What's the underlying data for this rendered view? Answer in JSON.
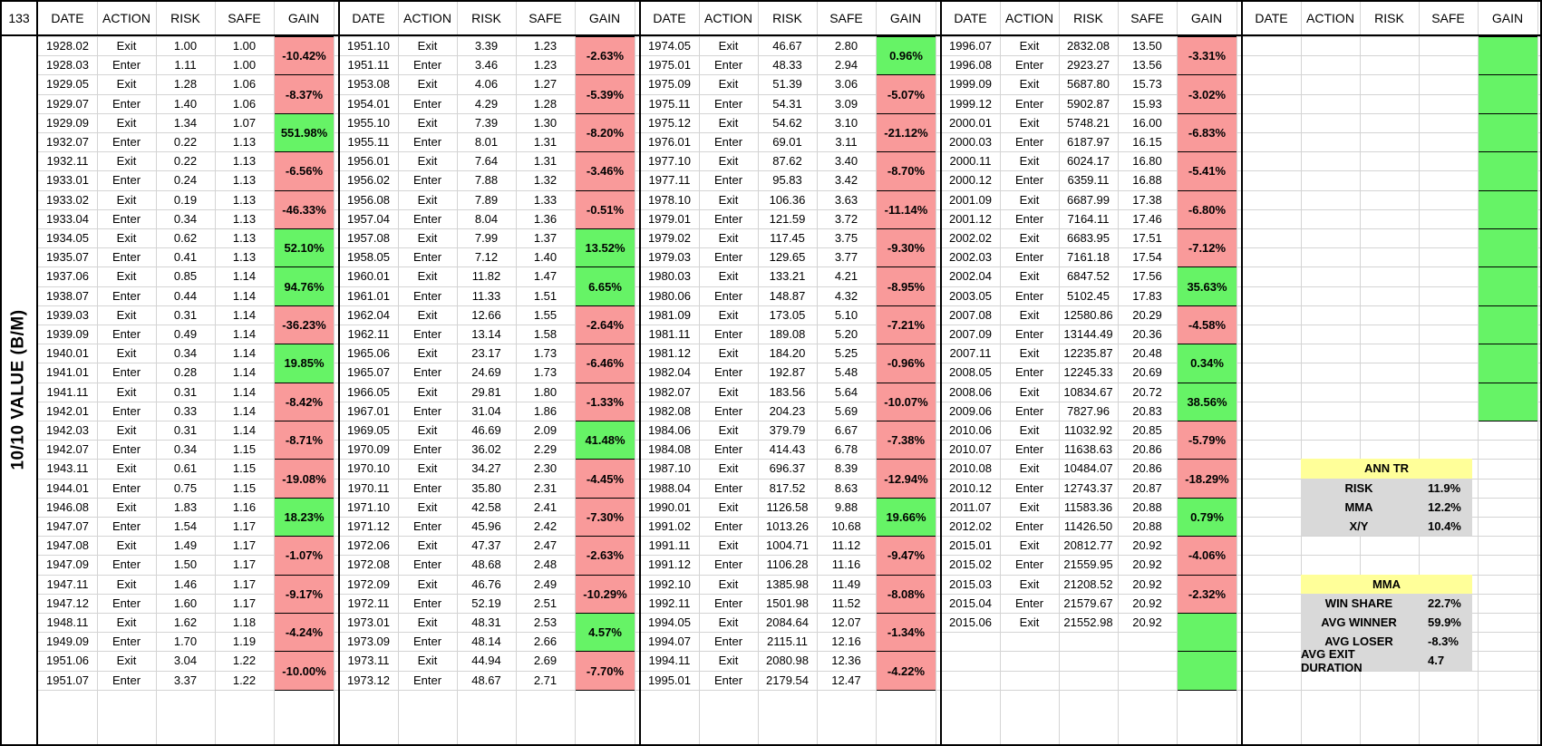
{
  "corner_label": "133",
  "side_label": "10/10 VALUE (B/M)",
  "headers": [
    "DATE",
    "ACTION",
    "RISK",
    "SAFE",
    "GAIN"
  ],
  "colors": {
    "negative": "#f99a9a",
    "positive": "#66f366",
    "stat_header": "#ffff99",
    "stat_body": "#d9d9d9"
  },
  "tables": [
    {
      "rows": [
        [
          "1928.02",
          "Exit",
          "1.00",
          "1.00"
        ],
        [
          "1928.03",
          "Enter",
          "1.11",
          "1.00"
        ],
        [
          "1929.05",
          "Exit",
          "1.28",
          "1.06"
        ],
        [
          "1929.07",
          "Enter",
          "1.40",
          "1.06"
        ],
        [
          "1929.09",
          "Exit",
          "1.34",
          "1.07"
        ],
        [
          "1932.07",
          "Enter",
          "0.22",
          "1.13"
        ],
        [
          "1932.11",
          "Exit",
          "0.22",
          "1.13"
        ],
        [
          "1933.01",
          "Enter",
          "0.24",
          "1.13"
        ],
        [
          "1933.02",
          "Exit",
          "0.19",
          "1.13"
        ],
        [
          "1933.04",
          "Enter",
          "0.34",
          "1.13"
        ],
        [
          "1934.05",
          "Exit",
          "0.62",
          "1.13"
        ],
        [
          "1935.07",
          "Enter",
          "0.41",
          "1.13"
        ],
        [
          "1937.06",
          "Exit",
          "0.85",
          "1.14"
        ],
        [
          "1938.07",
          "Enter",
          "0.44",
          "1.14"
        ],
        [
          "1939.03",
          "Exit",
          "0.31",
          "1.14"
        ],
        [
          "1939.09",
          "Enter",
          "0.49",
          "1.14"
        ],
        [
          "1940.01",
          "Exit",
          "0.34",
          "1.14"
        ],
        [
          "1941.01",
          "Enter",
          "0.28",
          "1.14"
        ],
        [
          "1941.11",
          "Exit",
          "0.31",
          "1.14"
        ],
        [
          "1942.01",
          "Enter",
          "0.33",
          "1.14"
        ],
        [
          "1942.03",
          "Exit",
          "0.31",
          "1.14"
        ],
        [
          "1942.07",
          "Enter",
          "0.34",
          "1.15"
        ],
        [
          "1943.11",
          "Exit",
          "0.61",
          "1.15"
        ],
        [
          "1944.01",
          "Enter",
          "0.75",
          "1.15"
        ],
        [
          "1946.08",
          "Exit",
          "1.83",
          "1.16"
        ],
        [
          "1947.07",
          "Enter",
          "1.54",
          "1.17"
        ],
        [
          "1947.08",
          "Exit",
          "1.49",
          "1.17"
        ],
        [
          "1947.09",
          "Enter",
          "1.50",
          "1.17"
        ],
        [
          "1947.11",
          "Exit",
          "1.46",
          "1.17"
        ],
        [
          "1947.12",
          "Enter",
          "1.60",
          "1.17"
        ],
        [
          "1948.11",
          "Exit",
          "1.62",
          "1.18"
        ],
        [
          "1949.09",
          "Enter",
          "1.70",
          "1.19"
        ],
        [
          "1951.06",
          "Exit",
          "3.04",
          "1.22"
        ],
        [
          "1951.07",
          "Enter",
          "3.37",
          "1.22"
        ]
      ],
      "gains": [
        "-10.42%",
        "-8.37%",
        "551.98%",
        "-6.56%",
        "-46.33%",
        "52.10%",
        "94.76%",
        "-36.23%",
        "19.85%",
        "-8.42%",
        "-8.71%",
        "-19.08%",
        "18.23%",
        "-1.07%",
        "-9.17%",
        "-4.24%",
        "-10.00%"
      ]
    },
    {
      "rows": [
        [
          "1951.10",
          "Exit",
          "3.39",
          "1.23"
        ],
        [
          "1951.11",
          "Enter",
          "3.46",
          "1.23"
        ],
        [
          "1953.08",
          "Exit",
          "4.06",
          "1.27"
        ],
        [
          "1954.01",
          "Enter",
          "4.29",
          "1.28"
        ],
        [
          "1955.10",
          "Exit",
          "7.39",
          "1.30"
        ],
        [
          "1955.11",
          "Enter",
          "8.01",
          "1.31"
        ],
        [
          "1956.01",
          "Exit",
          "7.64",
          "1.31"
        ],
        [
          "1956.02",
          "Enter",
          "7.88",
          "1.32"
        ],
        [
          "1956.08",
          "Exit",
          "7.89",
          "1.33"
        ],
        [
          "1957.04",
          "Enter",
          "8.04",
          "1.36"
        ],
        [
          "1957.08",
          "Exit",
          "7.99",
          "1.37"
        ],
        [
          "1958.05",
          "Enter",
          "7.12",
          "1.40"
        ],
        [
          "1960.01",
          "Exit",
          "11.82",
          "1.47"
        ],
        [
          "1961.01",
          "Enter",
          "11.33",
          "1.51"
        ],
        [
          "1962.04",
          "Exit",
          "12.66",
          "1.55"
        ],
        [
          "1962.11",
          "Enter",
          "13.14",
          "1.58"
        ],
        [
          "1965.06",
          "Exit",
          "23.17",
          "1.73"
        ],
        [
          "1965.07",
          "Enter",
          "24.69",
          "1.73"
        ],
        [
          "1966.05",
          "Exit",
          "29.81",
          "1.80"
        ],
        [
          "1967.01",
          "Enter",
          "31.04",
          "1.86"
        ],
        [
          "1969.05",
          "Exit",
          "46.69",
          "2.09"
        ],
        [
          "1970.09",
          "Enter",
          "36.02",
          "2.29"
        ],
        [
          "1970.10",
          "Exit",
          "34.27",
          "2.30"
        ],
        [
          "1970.11",
          "Enter",
          "35.80",
          "2.31"
        ],
        [
          "1971.10",
          "Exit",
          "42.58",
          "2.41"
        ],
        [
          "1971.12",
          "Enter",
          "45.96",
          "2.42"
        ],
        [
          "1972.06",
          "Exit",
          "47.37",
          "2.47"
        ],
        [
          "1972.08",
          "Enter",
          "48.68",
          "2.48"
        ],
        [
          "1972.09",
          "Exit",
          "46.76",
          "2.49"
        ],
        [
          "1972.11",
          "Enter",
          "52.19",
          "2.51"
        ],
        [
          "1973.01",
          "Exit",
          "48.31",
          "2.53"
        ],
        [
          "1973.09",
          "Enter",
          "48.14",
          "2.66"
        ],
        [
          "1973.11",
          "Exit",
          "44.94",
          "2.69"
        ],
        [
          "1973.12",
          "Enter",
          "48.67",
          "2.71"
        ]
      ],
      "gains": [
        "-2.63%",
        "-5.39%",
        "-8.20%",
        "-3.46%",
        "-0.51%",
        "13.52%",
        "6.65%",
        "-2.64%",
        "-6.46%",
        "-1.33%",
        "41.48%",
        "-4.45%",
        "-7.30%",
        "-2.63%",
        "-10.29%",
        "4.57%",
        "-7.70%"
      ]
    },
    {
      "rows": [
        [
          "1974.05",
          "Exit",
          "46.67",
          "2.80"
        ],
        [
          "1975.01",
          "Enter",
          "48.33",
          "2.94"
        ],
        [
          "1975.09",
          "Exit",
          "51.39",
          "3.06"
        ],
        [
          "1975.11",
          "Enter",
          "54.31",
          "3.09"
        ],
        [
          "1975.12",
          "Exit",
          "54.62",
          "3.10"
        ],
        [
          "1976.01",
          "Enter",
          "69.01",
          "3.11"
        ],
        [
          "1977.10",
          "Exit",
          "87.62",
          "3.40"
        ],
        [
          "1977.11",
          "Enter",
          "95.83",
          "3.42"
        ],
        [
          "1978.10",
          "Exit",
          "106.36",
          "3.63"
        ],
        [
          "1979.01",
          "Enter",
          "121.59",
          "3.72"
        ],
        [
          "1979.02",
          "Exit",
          "117.45",
          "3.75"
        ],
        [
          "1979.03",
          "Enter",
          "129.65",
          "3.77"
        ],
        [
          "1980.03",
          "Exit",
          "133.21",
          "4.21"
        ],
        [
          "1980.06",
          "Enter",
          "148.87",
          "4.32"
        ],
        [
          "1981.09",
          "Exit",
          "173.05",
          "5.10"
        ],
        [
          "1981.11",
          "Enter",
          "189.08",
          "5.20"
        ],
        [
          "1981.12",
          "Exit",
          "184.20",
          "5.25"
        ],
        [
          "1982.04",
          "Enter",
          "192.87",
          "5.48"
        ],
        [
          "1982.07",
          "Exit",
          "183.56",
          "5.64"
        ],
        [
          "1982.08",
          "Enter",
          "204.23",
          "5.69"
        ],
        [
          "1984.06",
          "Exit",
          "379.79",
          "6.67"
        ],
        [
          "1984.08",
          "Enter",
          "414.43",
          "6.78"
        ],
        [
          "1987.10",
          "Exit",
          "696.37",
          "8.39"
        ],
        [
          "1988.04",
          "Enter",
          "817.52",
          "8.63"
        ],
        [
          "1990.01",
          "Exit",
          "1126.58",
          "9.88"
        ],
        [
          "1991.02",
          "Enter",
          "1013.26",
          "10.68"
        ],
        [
          "1991.11",
          "Exit",
          "1004.71",
          "11.12"
        ],
        [
          "1991.12",
          "Enter",
          "1106.28",
          "11.16"
        ],
        [
          "1992.10",
          "Exit",
          "1385.98",
          "11.49"
        ],
        [
          "1992.11",
          "Enter",
          "1501.98",
          "11.52"
        ],
        [
          "1994.05",
          "Exit",
          "2084.64",
          "12.07"
        ],
        [
          "1994.07",
          "Enter",
          "2115.11",
          "12.16"
        ],
        [
          "1994.11",
          "Exit",
          "2080.98",
          "12.36"
        ],
        [
          "1995.01",
          "Enter",
          "2179.54",
          "12.47"
        ]
      ],
      "gains": [
        "0.96%",
        "-5.07%",
        "-21.12%",
        "-8.70%",
        "-11.14%",
        "-9.30%",
        "-8.95%",
        "-7.21%",
        "-0.96%",
        "-10.07%",
        "-7.38%",
        "-12.94%",
        "19.66%",
        "-9.47%",
        "-8.08%",
        "-1.34%",
        "-4.22%"
      ]
    },
    {
      "rows": [
        [
          "1996.07",
          "Exit",
          "2832.08",
          "13.50"
        ],
        [
          "1996.08",
          "Enter",
          "2923.27",
          "13.56"
        ],
        [
          "1999.09",
          "Exit",
          "5687.80",
          "15.73"
        ],
        [
          "1999.12",
          "Enter",
          "5902.87",
          "15.93"
        ],
        [
          "2000.01",
          "Exit",
          "5748.21",
          "16.00"
        ],
        [
          "2000.03",
          "Enter",
          "6187.97",
          "16.15"
        ],
        [
          "2000.11",
          "Exit",
          "6024.17",
          "16.80"
        ],
        [
          "2000.12",
          "Enter",
          "6359.11",
          "16.88"
        ],
        [
          "2001.09",
          "Exit",
          "6687.99",
          "17.38"
        ],
        [
          "2001.12",
          "Enter",
          "7164.11",
          "17.46"
        ],
        [
          "2002.02",
          "Exit",
          "6683.95",
          "17.51"
        ],
        [
          "2002.03",
          "Enter",
          "7161.18",
          "17.54"
        ],
        [
          "2002.04",
          "Exit",
          "6847.52",
          "17.56"
        ],
        [
          "2003.05",
          "Enter",
          "5102.45",
          "17.83"
        ],
        [
          "2007.08",
          "Exit",
          "12580.86",
          "20.29"
        ],
        [
          "2007.09",
          "Enter",
          "13144.49",
          "20.36"
        ],
        [
          "2007.11",
          "Exit",
          "12235.87",
          "20.48"
        ],
        [
          "2008.05",
          "Enter",
          "12245.33",
          "20.69"
        ],
        [
          "2008.06",
          "Exit",
          "10834.67",
          "20.72"
        ],
        [
          "2009.06",
          "Enter",
          "7827.96",
          "20.83"
        ],
        [
          "2010.06",
          "Exit",
          "11032.92",
          "20.85"
        ],
        [
          "2010.07",
          "Enter",
          "11638.63",
          "20.86"
        ],
        [
          "2010.08",
          "Exit",
          "10484.07",
          "20.86"
        ],
        [
          "2010.12",
          "Enter",
          "12743.37",
          "20.87"
        ],
        [
          "2011.07",
          "Exit",
          "11583.36",
          "20.88"
        ],
        [
          "2012.02",
          "Enter",
          "11426.50",
          "20.88"
        ],
        [
          "2015.01",
          "Exit",
          "20812.77",
          "20.92"
        ],
        [
          "2015.02",
          "Enter",
          "21559.95",
          "20.92"
        ],
        [
          "2015.03",
          "Exit",
          "21208.52",
          "20.92"
        ],
        [
          "2015.04",
          "Enter",
          "21579.67",
          "20.92"
        ],
        [
          "2015.06",
          "Exit",
          "21552.98",
          "20.92"
        ],
        [
          "",
          "",
          "",
          ""
        ],
        [
          "",
          "",
          "",
          ""
        ],
        [
          "",
          "",
          "",
          ""
        ]
      ],
      "gains": [
        "-3.31%",
        "-3.02%",
        "-6.83%",
        "-5.41%",
        "-6.80%",
        "-7.12%",
        "35.63%",
        "-4.58%",
        "0.34%",
        "38.56%",
        "-5.79%",
        "-18.29%",
        "0.79%",
        "-4.06%",
        "-2.32%",
        "",
        ""
      ]
    },
    {
      "rows": [],
      "gains": [
        "",
        "",
        "",
        "",
        "",
        "",
        "",
        "",
        "",
        "",
        null,
        null,
        null,
        null,
        null,
        null,
        null
      ]
    }
  ],
  "gain_signs": [
    [
      "n",
      "n",
      "p",
      "n",
      "n",
      "p",
      "p",
      "n",
      "p",
      "n",
      "n",
      "n",
      "p",
      "n",
      "n",
      "n",
      "n"
    ],
    [
      "n",
      "n",
      "n",
      "n",
      "n",
      "p",
      "p",
      "n",
      "n",
      "n",
      "p",
      "n",
      "n",
      "n",
      "n",
      "p",
      "n"
    ],
    [
      "p",
      "n",
      "n",
      "n",
      "n",
      "n",
      "n",
      "n",
      "n",
      "n",
      "n",
      "n",
      "p",
      "n",
      "n",
      "n",
      "n"
    ],
    [
      "n",
      "n",
      "n",
      "n",
      "n",
      "n",
      "p",
      "n",
      "p",
      "p",
      "n",
      "n",
      "p",
      "n",
      "n",
      "p",
      "p"
    ],
    [
      "p",
      "p",
      "p",
      "p",
      "p",
      "p",
      "p",
      "p",
      "p",
      "p",
      "x",
      "x",
      "x",
      "x",
      "x",
      "x",
      "x"
    ]
  ],
  "stats": {
    "ann_tr": {
      "title": "ANN TR",
      "rows": [
        {
          "label": "RISK",
          "value": "11.9%"
        },
        {
          "label": "MMA",
          "value": "12.2%"
        },
        {
          "label": "X/Y",
          "value": "10.4%"
        }
      ]
    },
    "mma": {
      "title": "MMA",
      "rows": [
        {
          "label": "WIN SHARE",
          "value": "22.7%"
        },
        {
          "label": "AVG WINNER",
          "value": "59.9%"
        },
        {
          "label": "AVG LOSER",
          "value": "-8.3%"
        },
        {
          "label": "AVG EXIT DURATION",
          "value": "4.7"
        }
      ]
    }
  }
}
